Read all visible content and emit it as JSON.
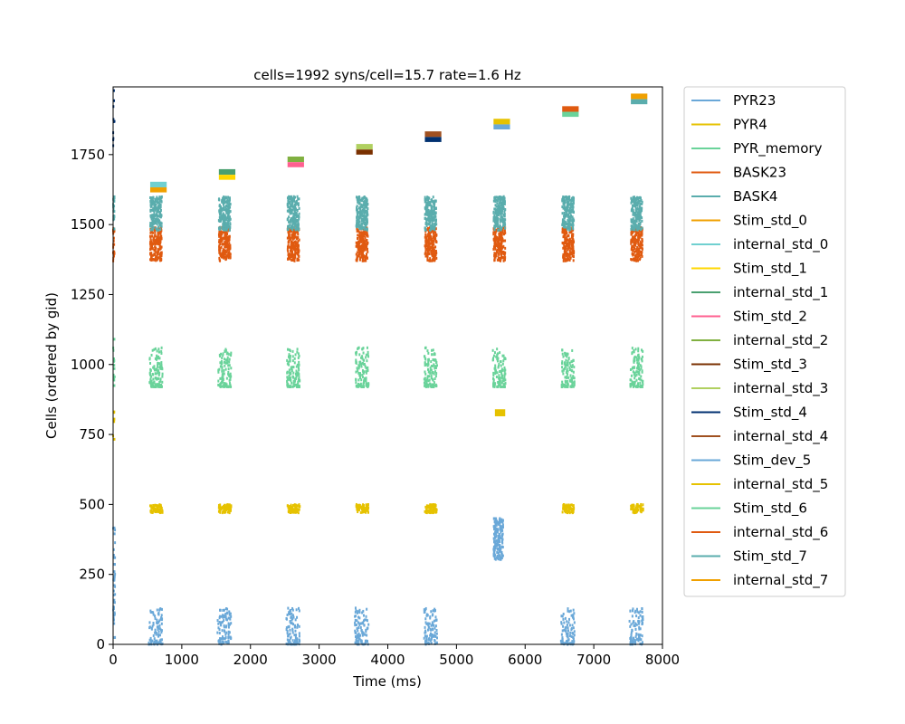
{
  "chart_data": {
    "type": "scatter",
    "title": "cells=1992   syns/cell=15.7   rate=1.6 Hz",
    "xlabel": "Time (ms)",
    "ylabel": "Cells (ordered by gid)",
    "xlim": [
      0,
      8000
    ],
    "ylim": [
      0,
      1992
    ],
    "xticks": [
      0,
      1000,
      2000,
      3000,
      4000,
      5000,
      6000,
      7000,
      8000
    ],
    "yticks": [
      0,
      250,
      500,
      750,
      1000,
      1250,
      1500,
      1750
    ],
    "grid": false,
    "legend_position": "outside-right",
    "stim_times": [
      600,
      1600,
      2600,
      3600,
      4600,
      5600,
      6600,
      7600
    ],
    "series": [
      {
        "name": "PYR23",
        "color": "#6aa8d8",
        "gid_range": [
          0,
          150
        ]
      },
      {
        "name": "PYR4",
        "color": "#e6c200",
        "gid_range": [
          450,
          500
        ]
      },
      {
        "name": "PYR_memory",
        "color": "#6ad39a",
        "gid_range": [
          920,
          1060
        ]
      },
      {
        "name": "BASK23",
        "color": "#e05a10",
        "gid_range": [
          1370,
          1490
        ]
      },
      {
        "name": "BASK4",
        "color": "#5aadad",
        "gid_range": [
          1480,
          1600
        ]
      },
      {
        "name": "Stim_std_0",
        "color": "#f0a000",
        "gid_range": [
          1610,
          1625
        ]
      },
      {
        "name": "internal_std_0",
        "color": "#70d0d0",
        "gid_range": [
          1630,
          1650
        ]
      },
      {
        "name": "Stim_std_1",
        "color": "#ffd700",
        "gid_range": [
          1660,
          1675
        ]
      },
      {
        "name": "internal_std_1",
        "color": "#4aa070",
        "gid_range": [
          1680,
          1700
        ]
      },
      {
        "name": "Stim_std_2",
        "color": "#ff6090",
        "gid_range": [
          1705,
          1720
        ]
      },
      {
        "name": "internal_std_2",
        "color": "#80b040",
        "gid_range": [
          1725,
          1745
        ]
      },
      {
        "name": "Stim_std_3",
        "color": "#7a3000",
        "gid_range": [
          1755,
          1770
        ]
      },
      {
        "name": "internal_std_3",
        "color": "#b0d060",
        "gid_range": [
          1775,
          1795
        ]
      },
      {
        "name": "Stim_std_4",
        "color": "#003070",
        "gid_range": [
          1805,
          1820
        ]
      },
      {
        "name": "internal_std_4",
        "color": "#a05020",
        "gid_range": [
          1825,
          1845
        ]
      },
      {
        "name": "Stim_dev_5",
        "color": "#6aa8d8",
        "gid_range": [
          1850,
          1865
        ]
      },
      {
        "name": "internal_std_5",
        "color": "#e6c200",
        "gid_range": [
          1870,
          1890
        ]
      },
      {
        "name": "Stim_std_6",
        "color": "#6ad39a",
        "gid_range": [
          1895,
          1910
        ]
      },
      {
        "name": "internal_std_6",
        "color": "#e05a10",
        "gid_range": [
          1915,
          1935
        ]
      },
      {
        "name": "Stim_std_7",
        "color": "#5aadad",
        "gid_range": [
          1940,
          1955
        ]
      },
      {
        "name": "internal_std_7",
        "color": "#f0a000",
        "gid_range": [
          1960,
          1985
        ]
      }
    ]
  }
}
